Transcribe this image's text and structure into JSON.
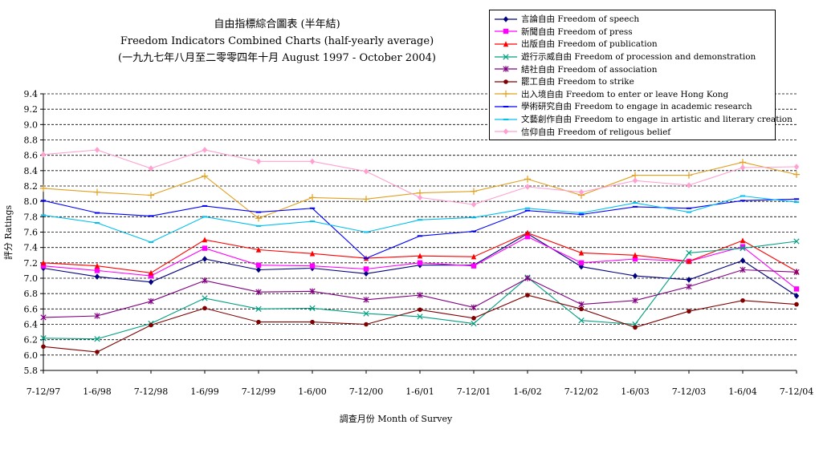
{
  "title_lines": [
    "自由指標綜合圖表 (半年結)",
    "Freedom Indicators Combined Charts (half-yearly average)",
    "(一九九七年八月至二零零四年十月 August 1997 - October 2004)"
  ],
  "chart_data": {
    "type": "line",
    "xlabel": "調查月份 Month of Survey",
    "ylabel": "評分 Ratings",
    "ylim": [
      5.8,
      9.4
    ],
    "yticks": [
      "9.4",
      "9.2",
      "9.0",
      "8.8",
      "8.6",
      "8.4",
      "8.2",
      "8.0",
      "7.8",
      "7.6",
      "7.4",
      "7.2",
      "7.0",
      "6.8",
      "6.6",
      "6.4",
      "6.2",
      "6.0",
      "5.8"
    ],
    "categories": [
      "7-12/97",
      "1-6/98",
      "7-12/98",
      "1-6/99",
      "7-12/99",
      "1-6/00",
      "7-12/00",
      "1-6/01",
      "7-12/01",
      "1-6/02",
      "7-12/02",
      "1-6/03",
      "7-12/03",
      "1-6/04",
      "7-12/04"
    ],
    "grid": "horizontal dashed",
    "legend_position": "top-right",
    "series": [
      {
        "name": "言論自由 Freedom of speech",
        "color": "#000080",
        "marker": "diamond",
        "values": [
          7.13,
          7.02,
          6.95,
          7.25,
          7.11,
          7.13,
          7.06,
          7.17,
          7.17,
          7.58,
          7.15,
          7.03,
          6.98,
          7.23,
          6.77
        ]
      },
      {
        "name": "新聞自由 Freedom of press",
        "color": "#ff00ff",
        "marker": "square",
        "values": [
          7.16,
          7.1,
          7.03,
          7.39,
          7.17,
          7.16,
          7.12,
          7.2,
          7.16,
          7.54,
          7.2,
          7.25,
          7.22,
          7.41,
          6.86
        ]
      },
      {
        "name": "出版自由 Freedom of publication",
        "color": "#ff0000",
        "marker": "triangle",
        "values": [
          7.2,
          7.16,
          7.07,
          7.5,
          7.37,
          7.32,
          7.26,
          7.29,
          7.28,
          7.59,
          7.33,
          7.3,
          7.22,
          7.49,
          7.09
        ]
      },
      {
        "name": "遊行示威自由 Freedom of procession and demonstration",
        "color": "#00a080",
        "marker": "x",
        "values": [
          6.22,
          6.21,
          6.41,
          6.74,
          6.6,
          6.61,
          6.54,
          6.5,
          6.41,
          7.01,
          6.45,
          6.4,
          7.33,
          7.39,
          7.48
        ]
      },
      {
        "name": "結社自由 Freedom of association",
        "color": "#800080",
        "marker": "star",
        "values": [
          6.49,
          6.51,
          6.7,
          6.97,
          6.82,
          6.83,
          6.72,
          6.78,
          6.62,
          7.0,
          6.66,
          6.71,
          6.89,
          7.11,
          7.08
        ]
      },
      {
        "name": "罷工自由 Freedom to strike",
        "color": "#800000",
        "marker": "circle",
        "values": [
          6.11,
          6.04,
          6.39,
          6.61,
          6.43,
          6.43,
          6.4,
          6.59,
          6.48,
          6.78,
          6.6,
          6.36,
          6.57,
          6.71,
          6.66
        ]
      },
      {
        "name": "出入境自由 Freedom to enter or leave Hong Kong",
        "color": "#e0a020",
        "marker": "plus",
        "values": [
          8.17,
          8.12,
          8.08,
          8.33,
          7.78,
          8.05,
          8.03,
          8.11,
          8.13,
          8.29,
          8.08,
          8.34,
          8.34,
          8.51,
          8.35
        ]
      },
      {
        "name": "學術研究自由 Freedom to engage in academic research",
        "color": "#0000ff",
        "marker": "dash",
        "values": [
          8.01,
          7.85,
          7.81,
          7.94,
          7.86,
          7.91,
          7.26,
          7.55,
          7.61,
          7.88,
          7.83,
          7.93,
          7.91,
          8.01,
          8.03
        ]
      },
      {
        "name": "文藝創作自由 Freedom to engage in artistic and literary creation",
        "color": "#00c0f0",
        "marker": "dash",
        "values": [
          7.82,
          7.72,
          7.47,
          7.8,
          7.68,
          7.74,
          7.6,
          7.76,
          7.79,
          7.91,
          7.85,
          7.98,
          7.86,
          8.07,
          7.99
        ]
      },
      {
        "name": "信仰自由 Freedom of religous belief",
        "color": "#ffa0d0",
        "marker": "diamond",
        "values": [
          8.61,
          8.67,
          8.43,
          8.67,
          8.52,
          8.52,
          8.39,
          8.05,
          7.96,
          8.19,
          8.12,
          8.27,
          8.21,
          8.44,
          8.45
        ]
      }
    ]
  }
}
